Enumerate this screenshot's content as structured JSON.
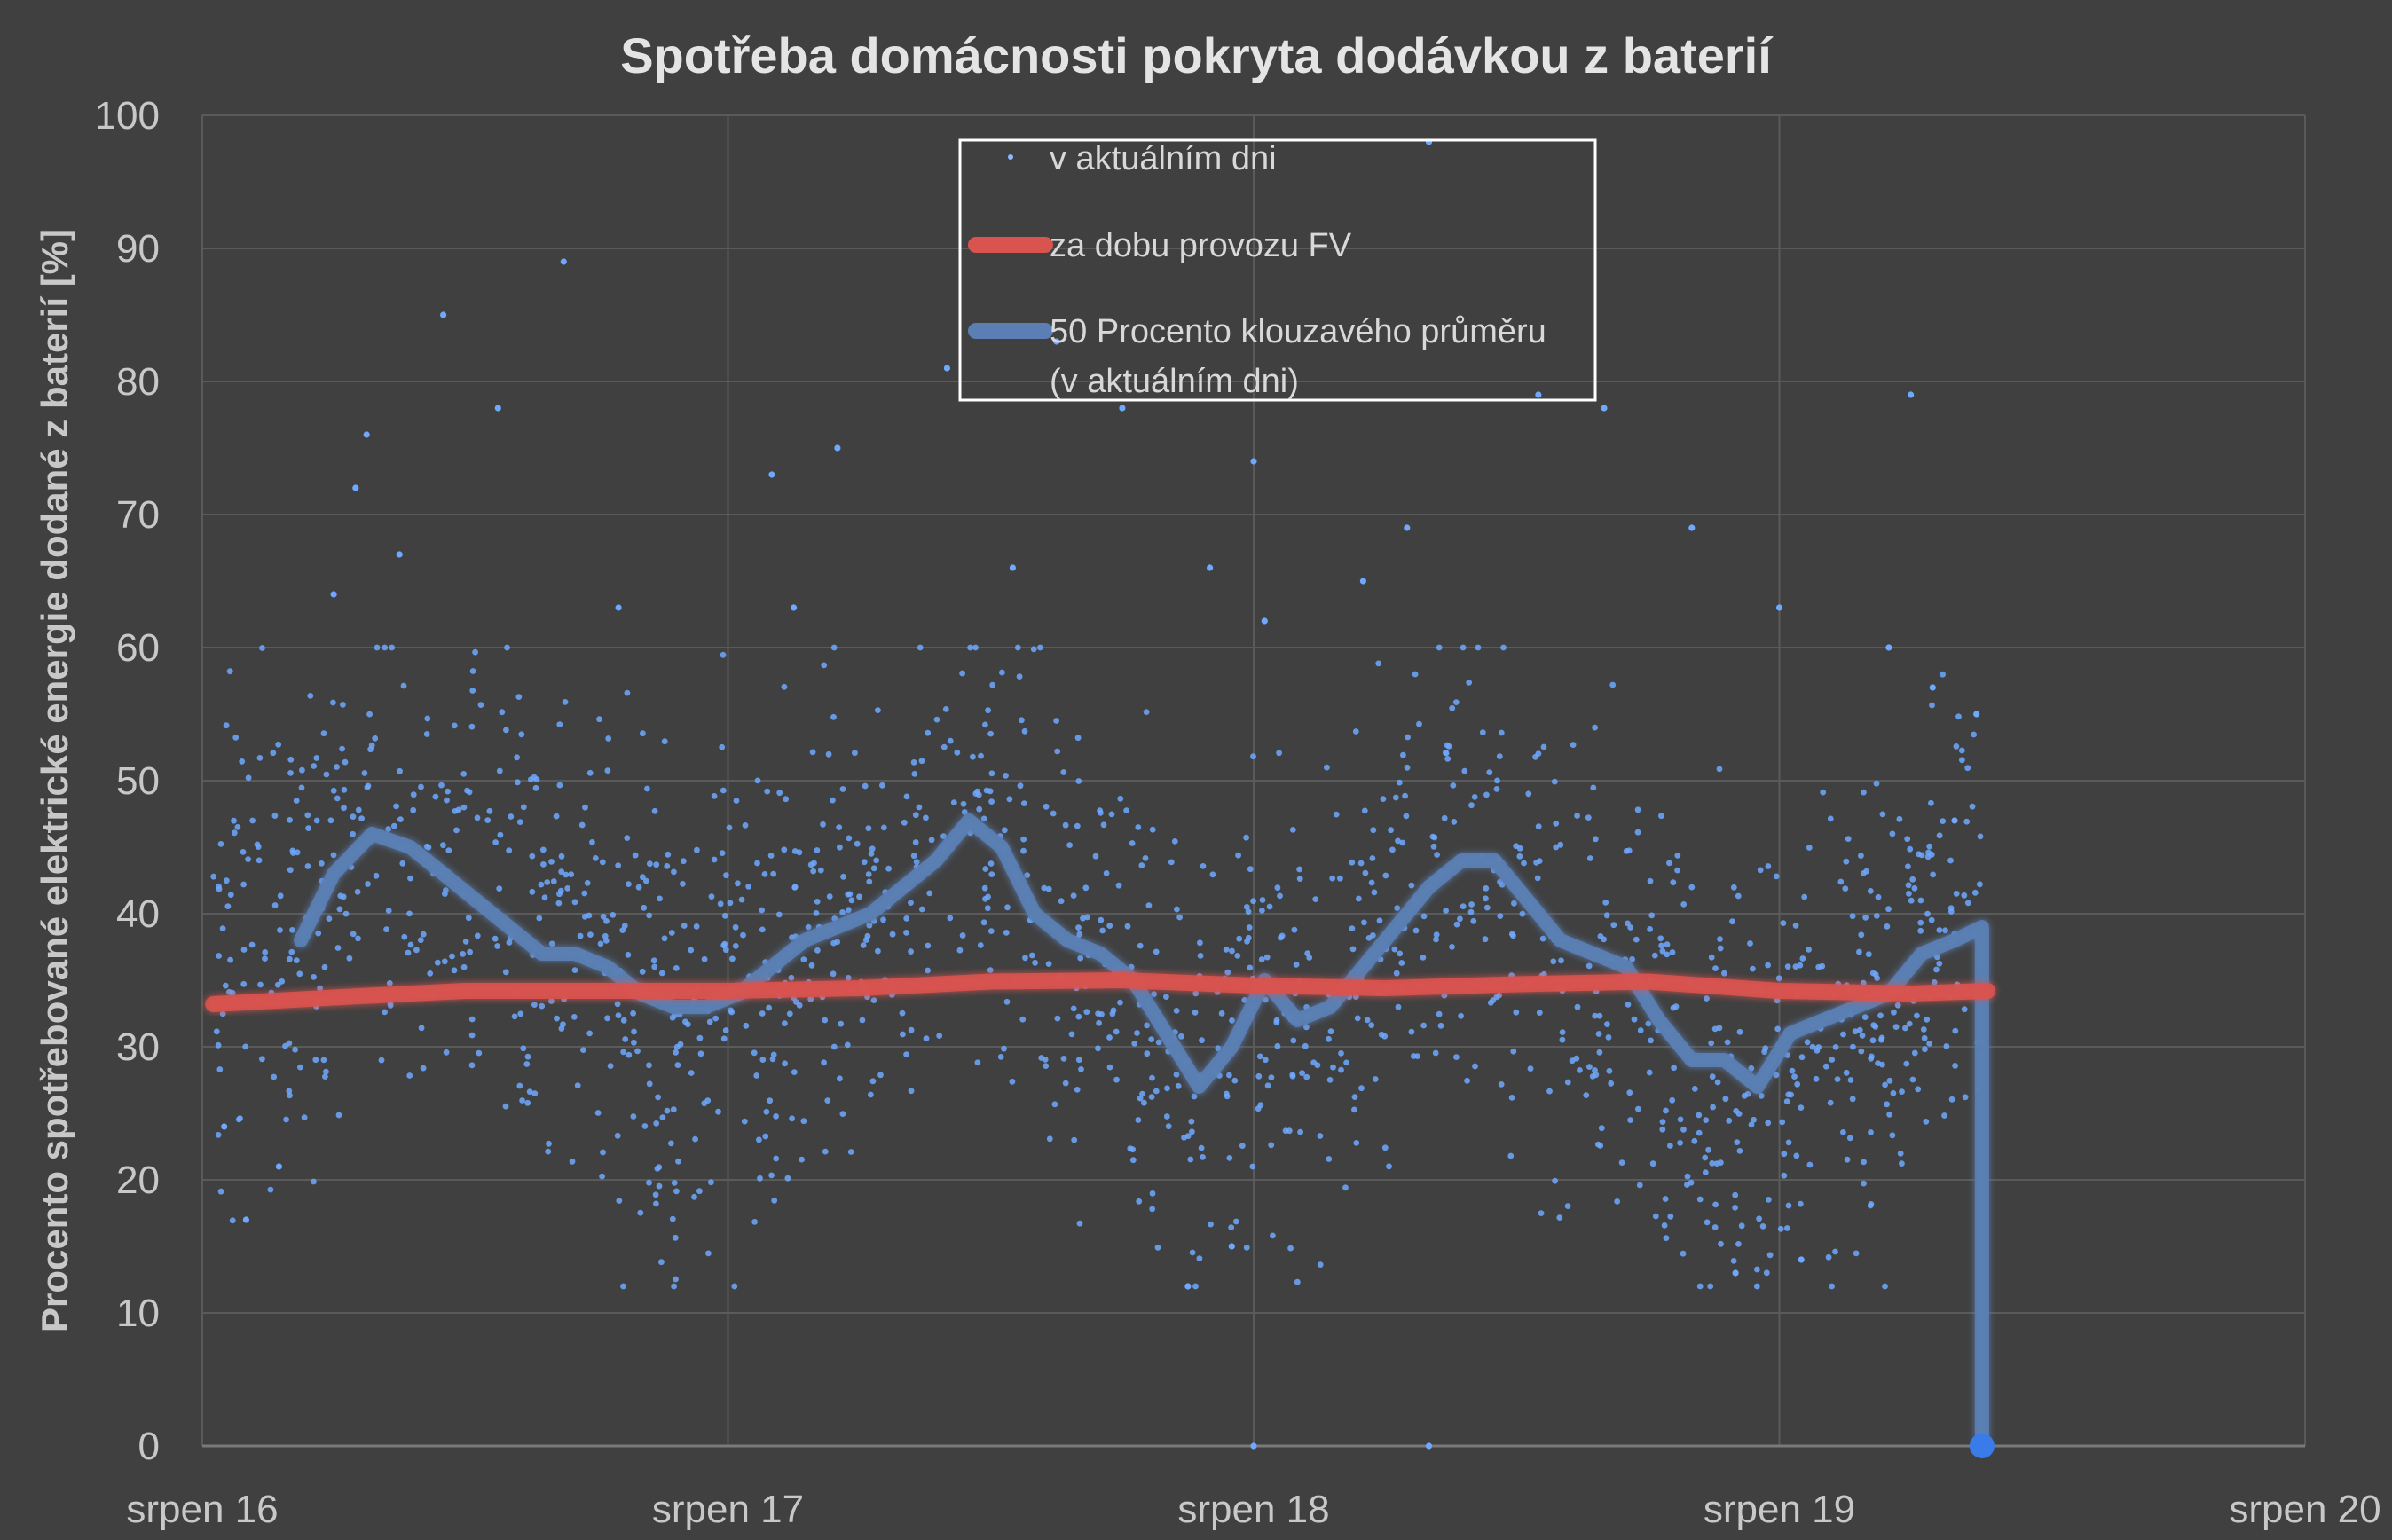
{
  "chart_data": {
    "type": "scatter",
    "title": "Spotřeba domácnosti pokryta dodávkou z baterií",
    "xlabel": "",
    "ylabel": "Procento spotřebované elektrické energie dodané z baterií [%]",
    "ylim": [
      0,
      100
    ],
    "xlim": [
      "2019-08-16",
      "2019-08-20"
    ],
    "y_ticks": [
      "0",
      "10",
      "20",
      "30",
      "40",
      "50",
      "60",
      "70",
      "80",
      "90",
      "100"
    ],
    "x_ticks": [
      "srpen 16",
      "srpen 17",
      "srpen 18",
      "srpen 19",
      "srpen 20"
    ],
    "grid": true,
    "legend_position": "top-center",
    "colors": {
      "background": "#404040",
      "grid": "#5a5a5a",
      "points": "#6fa8ff",
      "long_term": "#d9534f",
      "moving_average": "#5b7fb5",
      "legend_border": "#ffffff"
    },
    "series": [
      {
        "name": "v aktuálním dni",
        "kind": "scatter",
        "point_count": 1550,
        "notes": "dense per-minute points concentrated between 15 and 60 %",
        "sample_points": [
          [
            "2019-08-16T01:00",
            24
          ],
          [
            "2019-08-16T02:00",
            17
          ],
          [
            "2019-08-16T03:30",
            21
          ],
          [
            "2019-08-16T06:00",
            64
          ],
          [
            "2019-08-16T07:00",
            72
          ],
          [
            "2019-08-16T07:30",
            76
          ],
          [
            "2019-08-16T09:00",
            67
          ],
          [
            "2019-08-16T11:00",
            85
          ],
          [
            "2019-08-16T13:30",
            78
          ],
          [
            "2019-08-16T16:30",
            89
          ],
          [
            "2019-08-16T19:00",
            63
          ],
          [
            "2019-08-17T02:00",
            73
          ],
          [
            "2019-08-17T03:00",
            63
          ],
          [
            "2019-08-17T05:00",
            75
          ],
          [
            "2019-08-17T10:00",
            81
          ],
          [
            "2019-08-17T13:00",
            66
          ],
          [
            "2019-08-17T15:00",
            83
          ],
          [
            "2019-08-17T18:00",
            78
          ],
          [
            "2019-08-17T21:00",
            12
          ],
          [
            "2019-08-17T22:00",
            66
          ],
          [
            "2019-08-17T23:00",
            15
          ],
          [
            "2019-08-18T00:00",
            74
          ],
          [
            "2019-08-18T00:00",
            0
          ],
          [
            "2019-08-18T00:30",
            62
          ],
          [
            "2019-08-18T05:00",
            65
          ],
          [
            "2019-08-18T07:00",
            69
          ],
          [
            "2019-08-18T08:00",
            98
          ],
          [
            "2019-08-18T08:00",
            0
          ],
          [
            "2019-08-18T13:00",
            79
          ],
          [
            "2019-08-18T16:00",
            78
          ],
          [
            "2019-08-18T20:00",
            69
          ],
          [
            "2019-08-18T22:00",
            13
          ],
          [
            "2019-08-19T00:00",
            63
          ],
          [
            "2019-08-19T01:00",
            14
          ],
          [
            "2019-08-19T05:00",
            60
          ],
          [
            "2019-08-19T06:00",
            79
          ],
          [
            "2019-08-19T07:00",
            57
          ],
          [
            "2019-08-19T08:00",
            47
          ],
          [
            "2019-08-19T09:00",
            55
          ],
          [
            "2019-08-19T09:20",
            0
          ]
        ]
      },
      {
        "name": "za dobu provozu FV",
        "kind": "line",
        "x": [
          "2019-08-16T00:30",
          "2019-08-16T06:00",
          "2019-08-16T12:00",
          "2019-08-16T18:00",
          "2019-08-17T00:00",
          "2019-08-17T06:00",
          "2019-08-17T12:00",
          "2019-08-17T18:00",
          "2019-08-18T00:00",
          "2019-08-18T06:00",
          "2019-08-18T12:00",
          "2019-08-18T18:00",
          "2019-08-19T00:00",
          "2019-08-19T06:00",
          "2019-08-19T09:30"
        ],
        "values": [
          33.2,
          33.7,
          34.2,
          34.2,
          34.2,
          34.4,
          34.9,
          35.0,
          34.6,
          34.4,
          34.7,
          34.9,
          34.2,
          34.0,
          34.2
        ]
      },
      {
        "name": "50 Procento klouzavého průměru (v aktuálním dni)",
        "kind": "line",
        "x": [
          "2019-08-16T04:30",
          "2019-08-16T06:00",
          "2019-08-16T07:45",
          "2019-08-16T09:30",
          "2019-08-16T11:00",
          "2019-08-16T12:30",
          "2019-08-16T14:00",
          "2019-08-16T15:30",
          "2019-08-16T17:00",
          "2019-08-16T18:30",
          "2019-08-16T20:00",
          "2019-08-16T21:30",
          "2019-08-16T23:00",
          "2019-08-17T00:30",
          "2019-08-17T02:00",
          "2019-08-17T03:30",
          "2019-08-17T05:00",
          "2019-08-17T06:30",
          "2019-08-17T08:00",
          "2019-08-17T09:30",
          "2019-08-17T11:00",
          "2019-08-17T12:30",
          "2019-08-17T14:00",
          "2019-08-17T15:30",
          "2019-08-17T17:00",
          "2019-08-17T18:30",
          "2019-08-17T20:00",
          "2019-08-17T21:30",
          "2019-08-17T23:00",
          "2019-08-18T00:30",
          "2019-08-18T02:00",
          "2019-08-18T03:30",
          "2019-08-18T05:00",
          "2019-08-18T06:30",
          "2019-08-18T08:00",
          "2019-08-18T09:30",
          "2019-08-18T11:00",
          "2019-08-18T12:30",
          "2019-08-18T14:00",
          "2019-08-18T15:30",
          "2019-08-18T17:00",
          "2019-08-18T18:30",
          "2019-08-18T20:00",
          "2019-08-18T21:30",
          "2019-08-18T23:00",
          "2019-08-19T00:30",
          "2019-08-19T02:00",
          "2019-08-19T03:30",
          "2019-08-19T05:00",
          "2019-08-19T06:30",
          "2019-08-19T08:00",
          "2019-08-19T09:15",
          "2019-08-19T09:15"
        ],
        "values": [
          38,
          43,
          46,
          45,
          43,
          41,
          39,
          37,
          37,
          36,
          34,
          33,
          33,
          34,
          36,
          38,
          39,
          40,
          42,
          44,
          47,
          45,
          40,
          38,
          37,
          35,
          31,
          27,
          30,
          35,
          32,
          33,
          36,
          39,
          42,
          44,
          44,
          41,
          38,
          37,
          36,
          32,
          29,
          29,
          27,
          31,
          32,
          33,
          34,
          37,
          38,
          39,
          0
        ]
      }
    ]
  }
}
